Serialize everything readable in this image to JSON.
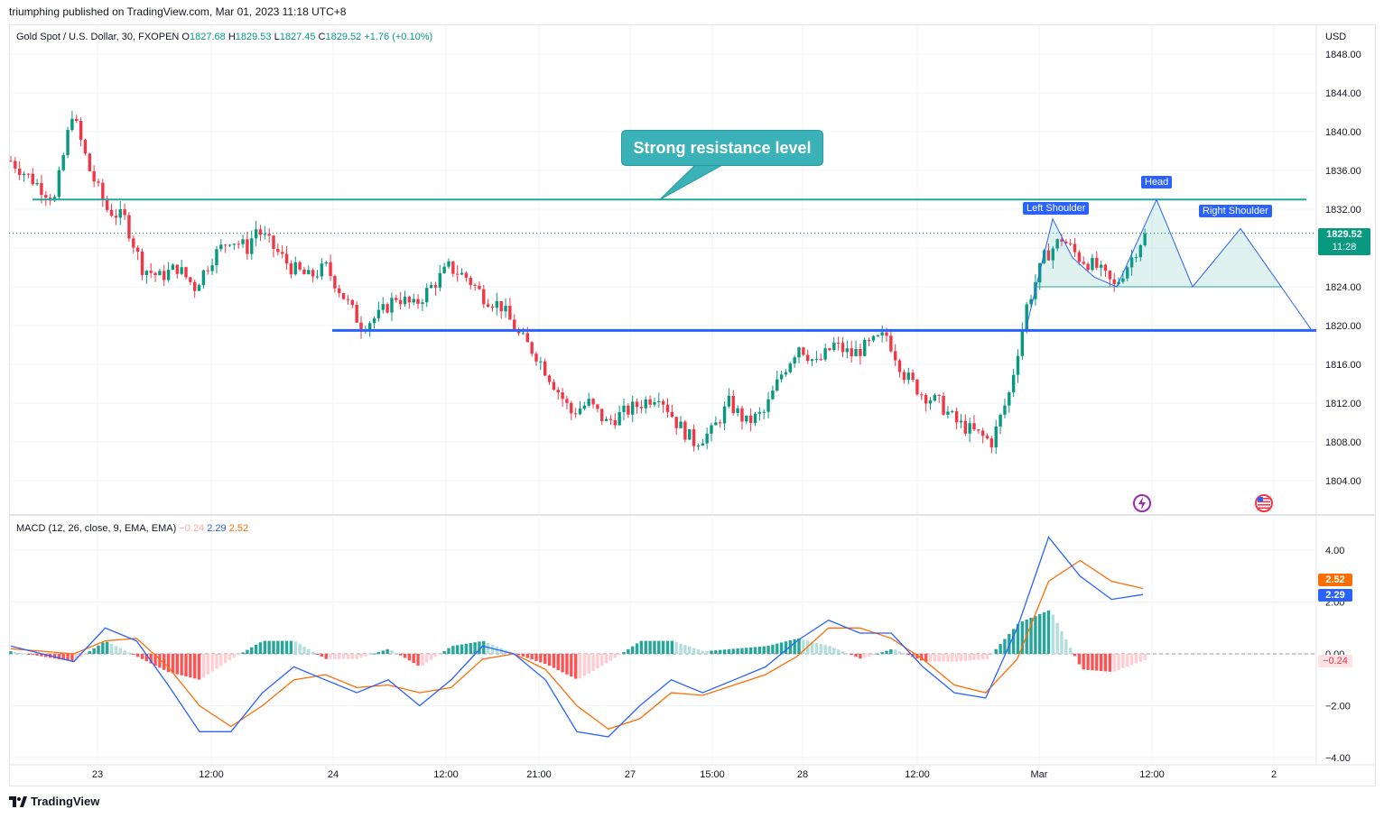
{
  "header": {
    "publisher": "triumphing published on TradingView.com, Mar 01, 2023 11:18 UTC+8"
  },
  "price_legend": {
    "symbol": "Gold Spot / U.S. Dollar, 30, FXOPEN",
    "o_label": "O",
    "o_value": "1827.68",
    "h_label": "H",
    "h_value": "1829.53",
    "l_label": "L",
    "l_value": "1827.45",
    "c_label": "C",
    "c_value": "1829.52",
    "change": "+1.76 (+0.10%)"
  },
  "macd_legend": {
    "title": "MACD (12, 26, close, 9, EMA, EMA)",
    "hist": "−0.24",
    "macd": "2.29",
    "signal": "2.52"
  },
  "currency": "USD",
  "last_price": {
    "price": "1829.52",
    "countdown": "11:28"
  },
  "macd_badges": {
    "signal": "2.52",
    "macd": "2.29",
    "hist": "−0.24"
  },
  "annotations": {
    "callout": "Strong resistance level",
    "left_shoulder": "Left Shoulder",
    "head": "Head",
    "right_shoulder": "Right Shoulder"
  },
  "footer": {
    "brand": "TradingView"
  },
  "colors": {
    "up": "#089981",
    "down": "#f23645",
    "resistance": "#26a69a",
    "support": "#2962ff",
    "macd": "#2962ff",
    "signal": "#ff6d00",
    "pattern": "#2962ff"
  },
  "icons": [
    "lightning-icon",
    "us-flag-icon",
    "tradingview-logo-icon"
  ],
  "chart_data": [
    {
      "type": "candlestick",
      "title": "Gold Spot / U.S. Dollar, 30, FXOPEN",
      "x_ticks": [
        "23",
        "12:00",
        "24",
        "12:00",
        "21:00",
        "27",
        "15:00",
        "28",
        "12:00",
        "Mar",
        "12:00",
        "2"
      ],
      "y_ticks": [
        "1848.00",
        "1844.00",
        "1840.00",
        "1836.00",
        "1832.00",
        "1828.00",
        "1824.00",
        "1820.00",
        "1816.00",
        "1812.00",
        "1808.00",
        "1804.00"
      ],
      "ylim": [
        1802,
        1850
      ],
      "close_path": [
        [
          0,
          1837
        ],
        [
          5,
          1835
        ],
        [
          10,
          1833
        ],
        [
          14,
          1842
        ],
        [
          18,
          1836
        ],
        [
          22,
          1832
        ],
        [
          26,
          1831
        ],
        [
          30,
          1826
        ],
        [
          34,
          1825
        ],
        [
          38,
          1826
        ],
        [
          42,
          1824
        ],
        [
          46,
          1827
        ],
        [
          50,
          1829
        ],
        [
          54,
          1828
        ],
        [
          56,
          1830
        ],
        [
          60,
          1828
        ],
        [
          64,
          1826
        ],
        [
          68,
          1825
        ],
        [
          72,
          1826
        ],
        [
          76,
          1823
        ],
        [
          80,
          1820
        ],
        [
          84,
          1821
        ],
        [
          88,
          1823
        ],
        [
          92,
          1822
        ],
        [
          96,
          1824
        ],
        [
          100,
          1826
        ],
        [
          104,
          1825
        ],
        [
          108,
          1823
        ],
        [
          112,
          1822
        ],
        [
          116,
          1819
        ],
        [
          120,
          1817
        ],
        [
          124,
          1814
        ],
        [
          128,
          1811
        ],
        [
          132,
          1812
        ],
        [
          136,
          1810
        ],
        [
          140,
          1811
        ],
        [
          144,
          1812
        ],
        [
          148,
          1813
        ],
        [
          152,
          1810
        ],
        [
          156,
          1808
        ],
        [
          160,
          1809
        ],
        [
          164,
          1812
        ],
        [
          168,
          1810
        ],
        [
          172,
          1811
        ],
        [
          176,
          1815
        ],
        [
          180,
          1818
        ],
        [
          184,
          1816
        ],
        [
          188,
          1818
        ],
        [
          192,
          1817
        ],
        [
          196,
          1818
        ],
        [
          200,
          1819
        ],
        [
          204,
          1815
        ],
        [
          208,
          1813
        ],
        [
          212,
          1812
        ],
        [
          216,
          1810
        ],
        [
          220,
          1809
        ],
        [
          224,
          1808
        ],
        [
          228,
          1813
        ],
        [
          232,
          1822
        ],
        [
          236,
          1827
        ],
        [
          240,
          1829
        ],
        [
          244,
          1827
        ],
        [
          248,
          1826
        ],
        [
          252,
          1824
        ],
        [
          256,
          1827
        ],
        [
          259,
          1829.52
        ]
      ],
      "resistance_level": 1833,
      "support_level": 1819.5,
      "last_price": 1829.52,
      "pattern": "Head and Shoulders",
      "pattern_points": [
        [
          1136,
          1819.5
        ],
        [
          1166,
          1831
        ],
        [
          1188,
          1827
        ],
        [
          1212,
          1825
        ],
        [
          1237,
          1824
        ],
        [
          1281,
          1833
        ],
        [
          1321,
          1824
        ],
        [
          1374,
          1830
        ],
        [
          1453,
          1819.5
        ]
      ]
    },
    {
      "type": "line",
      "title": "MACD (12, 26, close, 9, EMA, EMA)",
      "y_ticks": [
        "4.00",
        "2.00",
        "0.00",
        "−2.00",
        "−4.00"
      ],
      "ylim": [
        -4.3,
        4.3
      ],
      "series": [
        {
          "name": "MACD",
          "values": [
            0.3,
            0.0,
            -0.3,
            1.0,
            0.5,
            -1.2,
            -3.0,
            -3.0,
            -1.5,
            -0.5,
            -1.0,
            -1.5,
            -1.0,
            -2.0,
            -1.0,
            0.3,
            0.0,
            -1.0,
            -3.0,
            -3.2,
            -2.0,
            -1.0,
            -1.5,
            -1.0,
            -0.5,
            0.5,
            1.3,
            0.8,
            0.8,
            -0.5,
            -1.5,
            -1.7,
            1.0,
            4.5,
            3.0,
            2.1,
            2.29
          ],
          "color": "#2962ff"
        },
        {
          "name": "Signal",
          "values": [
            0.2,
            0.1,
            0.0,
            0.5,
            0.6,
            -0.5,
            -2.0,
            -2.8,
            -2.0,
            -1.0,
            -0.8,
            -1.3,
            -1.2,
            -1.5,
            -1.3,
            -0.2,
            0.0,
            -0.6,
            -2.0,
            -2.9,
            -2.5,
            -1.5,
            -1.6,
            -1.2,
            -0.8,
            -0.1,
            1.0,
            1.0,
            0.6,
            -0.2,
            -1.2,
            -1.5,
            -0.2,
            2.8,
            3.6,
            2.8,
            2.52
          ],
          "color": "#ff6d00"
        },
        {
          "name": "Histogram",
          "values": [
            0.1,
            -0.1,
            -0.3,
            0.5,
            -0.1,
            -0.7,
            -1.0,
            -0.2,
            0.5,
            0.5,
            -0.2,
            -0.2,
            0.2,
            -0.5,
            0.3,
            0.5,
            0.0,
            -0.4,
            -1.0,
            -0.3,
            0.5,
            0.5,
            0.1,
            0.2,
            0.3,
            0.6,
            0.3,
            -0.2,
            0.2,
            -0.3,
            -0.3,
            -0.2,
            1.2,
            1.7,
            -0.6,
            -0.7,
            -0.24
          ]
        }
      ]
    }
  ]
}
